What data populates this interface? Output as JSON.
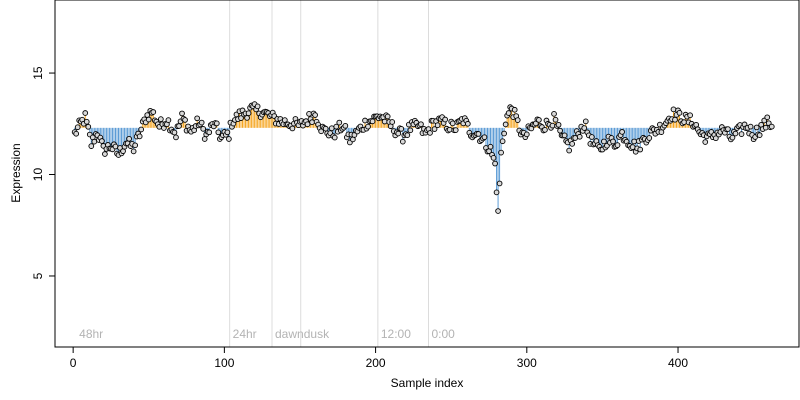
{
  "chart_data": {
    "type": "scatter",
    "title": "",
    "xlabel": "Sample index",
    "ylabel": "Expression",
    "xlim": [
      -12,
      480
    ],
    "ylim": [
      1.5,
      18.6
    ],
    "xticks": [
      0,
      100,
      200,
      300,
      400
    ],
    "yticks": [
      5,
      10,
      15
    ],
    "baseline": 12.3,
    "grid": false,
    "legend": "none",
    "colors": {
      "above": "#f5a623",
      "below": "#5b9bd5",
      "point_fill": "#d9d9d9",
      "point_stroke": "#000000",
      "vline": "#dcdcdc",
      "annotation": "#b3b3b3"
    },
    "annotations": [
      {
        "x": 103.5,
        "label": "24hr"
      },
      {
        "x": 131.5,
        "label": "dawn"
      },
      {
        "x": 150.5,
        "label": "dusk"
      },
      {
        "x": 201.5,
        "label": "12:00"
      },
      {
        "x": 235,
        "label": "0:00"
      }
    ],
    "corner_annotation": {
      "label": "48hr",
      "x": 2
    },
    "anchors": [
      [
        1,
        12.0
      ],
      [
        5,
        12.5
      ],
      [
        8,
        12.8
      ],
      [
        12,
        11.5
      ],
      [
        16,
        12.1
      ],
      [
        20,
        11.2
      ],
      [
        25,
        11.4
      ],
      [
        30,
        11.0
      ],
      [
        35,
        11.6
      ],
      [
        40,
        11.3
      ],
      [
        44,
        12.0
      ],
      [
        48,
        12.8
      ],
      [
        52,
        13.1
      ],
      [
        57,
        12.4
      ],
      [
        62,
        12.7
      ],
      [
        68,
        12.0
      ],
      [
        72,
        12.8
      ],
      [
        78,
        12.1
      ],
      [
        83,
        12.6
      ],
      [
        88,
        11.9
      ],
      [
        93,
        12.5
      ],
      [
        98,
        11.8
      ],
      [
        103,
        12.0
      ],
      [
        105,
        12.6
      ],
      [
        110,
        12.9
      ],
      [
        118,
        13.2
      ],
      [
        125,
        13.1
      ],
      [
        132,
        12.8
      ],
      [
        138,
        12.6
      ],
      [
        145,
        12.5
      ],
      [
        150,
        12.4
      ],
      [
        155,
        12.7
      ],
      [
        160,
        13.0
      ],
      [
        165,
        12.2
      ],
      [
        172,
        12.0
      ],
      [
        178,
        12.4
      ],
      [
        183,
        11.7
      ],
      [
        188,
        12.1
      ],
      [
        193,
        12.5
      ],
      [
        198,
        12.7
      ],
      [
        203,
        12.9
      ],
      [
        208,
        12.6
      ],
      [
        213,
        12.2
      ],
      [
        218,
        11.9
      ],
      [
        223,
        12.3
      ],
      [
        228,
        12.4
      ],
      [
        233,
        12.0
      ],
      [
        238,
        12.5
      ],
      [
        243,
        12.6
      ],
      [
        248,
        12.4
      ],
      [
        253,
        12.3
      ],
      [
        258,
        12.7
      ],
      [
        263,
        12.1
      ],
      [
        268,
        12.0
      ],
      [
        272,
        11.6
      ],
      [
        276,
        11.2
      ],
      [
        279,
        10.5
      ],
      [
        281,
        8.2
      ],
      [
        283,
        11.0
      ],
      [
        286,
        12.7
      ],
      [
        290,
        13.3
      ],
      [
        294,
        12.5
      ],
      [
        298,
        11.8
      ],
      [
        302,
        12.2
      ],
      [
        307,
        12.6
      ],
      [
        312,
        12.4
      ],
      [
        318,
        12.7
      ],
      [
        323,
        11.8
      ],
      [
        328,
        11.4
      ],
      [
        333,
        11.9
      ],
      [
        338,
        12.5
      ],
      [
        343,
        11.6
      ],
      [
        348,
        11.2
      ],
      [
        353,
        11.7
      ],
      [
        358,
        11.5
      ],
      [
        363,
        12.0
      ],
      [
        368,
        11.6
      ],
      [
        373,
        11.3
      ],
      [
        378,
        11.8
      ],
      [
        383,
        12.1
      ],
      [
        388,
        12.3
      ],
      [
        392,
        12.6
      ],
      [
        396,
        13.0
      ],
      [
        400,
        12.9
      ],
      [
        405,
        12.7
      ],
      [
        410,
        12.6
      ],
      [
        415,
        12.0
      ],
      [
        420,
        11.8
      ],
      [
        425,
        12.0
      ],
      [
        430,
        12.2
      ],
      [
        435,
        11.8
      ],
      [
        440,
        12.1
      ],
      [
        445,
        12.4
      ],
      [
        450,
        12.0
      ],
      [
        455,
        12.3
      ],
      [
        460,
        12.6
      ],
      [
        462,
        12.4
      ]
    ]
  }
}
